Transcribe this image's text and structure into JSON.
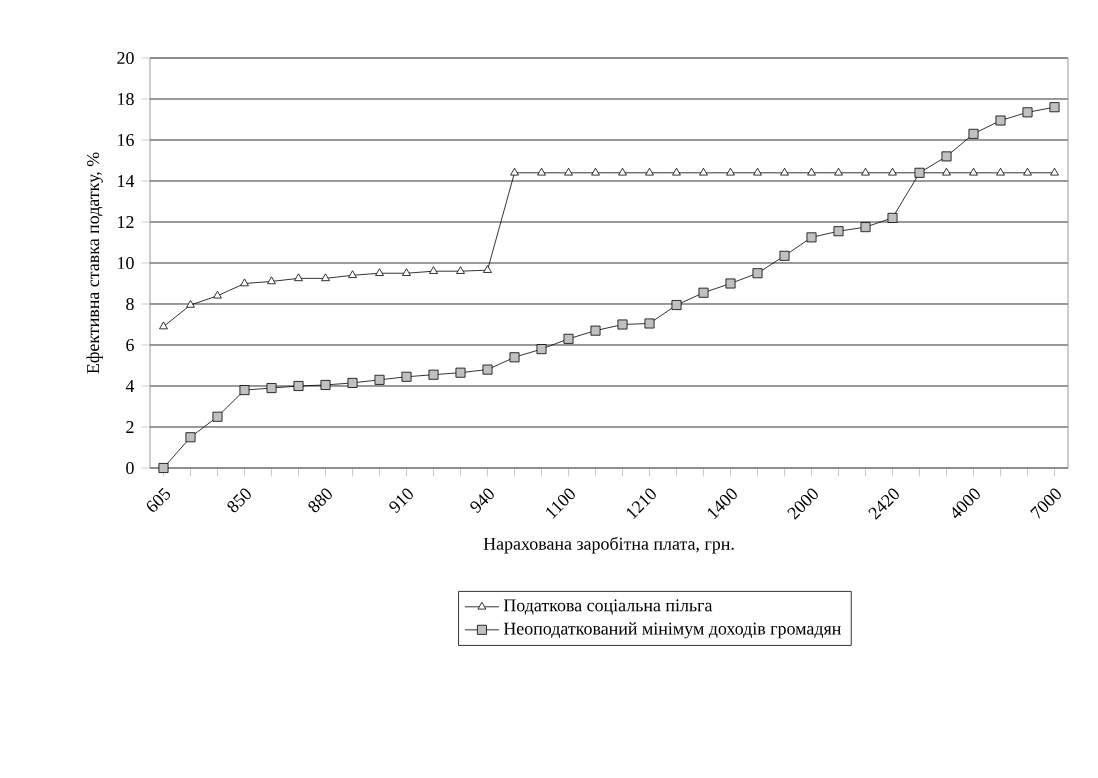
{
  "chart_data": {
    "type": "line",
    "xlabel": "Нарахована заробітна плата, грн.",
    "ylabel": "Ефективна ставка податку, %",
    "categories": [
      "605",
      null,
      null,
      "850",
      null,
      null,
      "880",
      null,
      null,
      "910",
      null,
      null,
      "940",
      null,
      null,
      "1100",
      null,
      null,
      "1210",
      null,
      null,
      "1400",
      null,
      null,
      "2000",
      null,
      null,
      "2420",
      null,
      null,
      "4000",
      null,
      null,
      "7000"
    ],
    "series": [
      {
        "name": "Податкова соціальна пільга",
        "color": "#ffffff",
        "marker": "triangle",
        "values": [
          6.9,
          7.95,
          8.4,
          9.0,
          9.1,
          9.25,
          9.25,
          9.4,
          9.5,
          9.5,
          9.6,
          9.6,
          9.65,
          14.4,
          14.4,
          14.4,
          14.4,
          14.4,
          14.4,
          14.4,
          14.4,
          14.4,
          14.4,
          14.4,
          14.4,
          14.4,
          14.4,
          14.4,
          14.4,
          14.4,
          14.4,
          14.4,
          14.4,
          14.4
        ]
      },
      {
        "name": "Неоподаткований мінімум доходів громадян",
        "color": "#c0c0c0",
        "marker": "square",
        "values": [
          0,
          1.5,
          2.5,
          3.8,
          3.9,
          4.0,
          4.05,
          4.15,
          4.3,
          4.45,
          4.55,
          4.65,
          4.8,
          5.4,
          5.8,
          6.3,
          6.7,
          7.0,
          7.05,
          7.95,
          8.55,
          9.0,
          9.5,
          10.35,
          11.25,
          11.55,
          11.75,
          12.2,
          14.4,
          15.2,
          16.3,
          16.95,
          17.35,
          17.6
        ]
      }
    ],
    "ylim": [
      0,
      20
    ],
    "yticks": [
      0,
      2,
      4,
      6,
      8,
      10,
      12,
      14,
      16,
      18,
      20
    ],
    "grid": "y",
    "legend": "bottom",
    "line_style": "solid"
  }
}
